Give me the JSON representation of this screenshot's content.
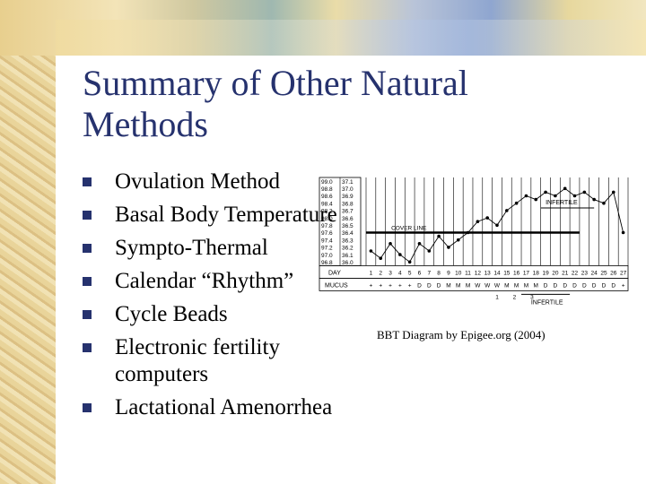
{
  "title": "Summary of Other Natural Methods",
  "bullets": [
    "Ovulation Method",
    "Basal Body Temperature",
    "Sympto-Thermal",
    "Calendar “Rhythm”",
    "Cycle Beads",
    "Electronic fertility computers",
    "Lactational Amenorrhea"
  ],
  "figure": {
    "caption": "BBT Diagram by Epigee.org (2004)",
    "infertile_top": "INFERTILE",
    "infertile_bottom": "INFERTILE",
    "cover_line": "COVER LINE",
    "day_label": "DAY",
    "mucus_label": "MUCUS",
    "temps_f": [
      "99.0",
      "98.8",
      "98.6",
      "98.4",
      "98.2",
      "98.0",
      "97.8",
      "97.6",
      "97.4",
      "97.2",
      "97.0",
      "96.8"
    ],
    "temps_c": [
      "37.1",
      "37.0",
      "36.9",
      "36.8",
      "36.7",
      "36.6",
      "36.5",
      "36.4",
      "36.3",
      "36.2",
      "36.1",
      "36.0"
    ],
    "days": [
      "1",
      "2",
      "3",
      "4",
      "5",
      "6",
      "7",
      "8",
      "9",
      "10",
      "11",
      "12",
      "13",
      "14",
      "15",
      "16",
      "17",
      "18",
      "19",
      "20",
      "21",
      "22",
      "23",
      "24",
      "25",
      "26",
      "27"
    ],
    "mucus": [
      "+",
      "+",
      "+",
      "+",
      "+",
      "D",
      "D",
      "D",
      "M",
      "M",
      "M",
      "W",
      "W",
      "W",
      "M",
      "M",
      "M",
      "M",
      "D",
      "D",
      "D",
      "D",
      "D",
      "D",
      "D",
      "D",
      "+"
    ],
    "bottom_counts": [
      "1",
      "2",
      "3"
    ],
    "temps_series": [
      97.1,
      96.9,
      97.3,
      97.0,
      96.8,
      97.3,
      97.1,
      97.5,
      97.2,
      97.4,
      97.6,
      97.9,
      98.0,
      97.8,
      98.2,
      98.4,
      98.6,
      98.5,
      98.7,
      98.6,
      98.8,
      98.6,
      98.7,
      98.5,
      98.4,
      98.7,
      97.6
    ]
  }
}
